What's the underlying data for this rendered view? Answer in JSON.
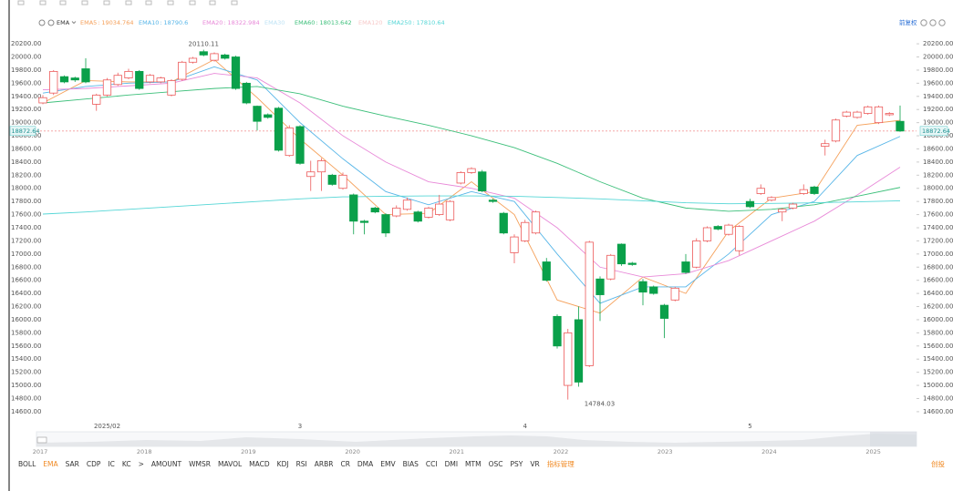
{
  "chart_data": {
    "type": "candlestick",
    "indicator": "EMA",
    "adjust": "前复权",
    "up_color": "#ec5a5a",
    "down_color": "#0aa04a",
    "categories": [
      null,
      null,
      null,
      null,
      null,
      null,
      "2025/02",
      null,
      null,
      null,
      null,
      null,
      null,
      null,
      null,
      null,
      null,
      null,
      null,
      null,
      null,
      null,
      null,
      null,
      "3",
      null,
      null,
      null,
      null,
      null,
      null,
      null,
      null,
      null,
      null,
      null,
      null,
      null,
      null,
      null,
      null,
      null,
      null,
      null,
      null,
      "4",
      null,
      null,
      null,
      null,
      null,
      null,
      null,
      null,
      null,
      null,
      null,
      null,
      null,
      null,
      null,
      null,
      null,
      null,
      null,
      null,
      "5",
      null,
      null,
      null,
      null,
      null,
      null,
      null,
      null,
      null,
      null,
      null,
      null,
      null,
      null
    ],
    "open": [
      19300,
      19450,
      19700,
      19680,
      19820,
      19280,
      19420,
      19580,
      19680,
      19780,
      19620,
      19620,
      19420,
      19660,
      19920,
      20080,
      19950,
      20030,
      20000,
      19600,
      19250,
      19120,
      19220,
      18500,
      18940,
      18180,
      18250,
      18200,
      18000,
      17900,
      17500,
      17700,
      17600,
      17580,
      17680,
      17640,
      17560,
      17600,
      17520,
      18080,
      18240,
      18250,
      17820,
      17620,
      17020,
      17200,
      17320,
      16880,
      16050,
      15000,
      16000,
      15300,
      16620,
      16620,
      17150,
      16860,
      16580,
      16500,
      16220,
      16300,
      16880,
      16800,
      17200,
      17420,
      17300,
      17050,
      17800,
      17920,
      17820,
      17640,
      17700,
      17920,
      18020,
      18640,
      18720,
      19100,
      19080,
      19140,
      19000,
      19120,
      19020
    ],
    "high": [
      19420,
      19800,
      19720,
      19700,
      19980,
      19440,
      19680,
      19760,
      19820,
      19800,
      19740,
      19700,
      19660,
      19940,
      20000,
      20110.11,
      20070,
      20050,
      20020,
      19620,
      19260,
      19140,
      19240,
      18960,
      18960,
      18420,
      18460,
      18220,
      18240,
      17920,
      17520,
      17720,
      17620,
      17740,
      17860,
      17660,
      17720,
      17900,
      17820,
      18260,
      18320,
      18280,
      17840,
      17640,
      17300,
      17520,
      17660,
      16940,
      16080,
      15860,
      16200,
      17200,
      16660,
      17000,
      17160,
      16880,
      16620,
      16520,
      16240,
      16500,
      17000,
      17240,
      17420,
      17440,
      17460,
      17440,
      17840,
      18060,
      17880,
      17700,
      17780,
      18060,
      18040,
      18740,
      19060,
      19180,
      19180,
      19260,
      19260,
      19160,
      19260
    ],
    "low": [
      19280,
      19420,
      19600,
      19620,
      19600,
      19180,
      19400,
      19560,
      19660,
      19500,
      19600,
      19600,
      19400,
      19640,
      19900,
      20010,
      19930,
      19960,
      19500,
      19280,
      18880,
      19060,
      18560,
      18480,
      18360,
      17960,
      17960,
      18040,
      17980,
      17300,
      17300,
      17620,
      17260,
      17560,
      17660,
      17480,
      17540,
      17580,
      17500,
      18060,
      18220,
      17940,
      17780,
      17300,
      16860,
      17180,
      17300,
      16580,
      15560,
      14784.03,
      14980,
      15280,
      15980,
      16600,
      16820,
      16820,
      16220,
      16380,
      15720,
      16280,
      16700,
      16780,
      17180,
      17360,
      17280,
      16980,
      17700,
      17900,
      17800,
      17500,
      17680,
      17900,
      17900,
      18500,
      18700,
      19080,
      19060,
      19120,
      18980,
      19100,
      18860
    ],
    "close": [
      19380,
      19780,
      19620,
      19650,
      19620,
      19420,
      19650,
      19720,
      19780,
      19520,
      19720,
      19680,
      19640,
      19920,
      19980,
      20030,
      20050,
      19980,
      19520,
      19300,
      19020,
      19080,
      18580,
      18920,
      18380,
      18250,
      18420,
      18060,
      18200,
      17500,
      17480,
      17640,
      17320,
      17700,
      17820,
      17500,
      17700,
      17760,
      17800,
      18240,
      18300,
      17960,
      17800,
      17320,
      17260,
      17480,
      17640,
      16600,
      15600,
      15800,
      15050,
      17180,
      16380,
      16980,
      16850,
      16840,
      16420,
      16400,
      16020,
      16480,
      16720,
      17200,
      17400,
      17380,
      17440,
      17420,
      17720,
      18000,
      17860,
      17680,
      17760,
      17980,
      17920,
      18680,
      19040,
      19160,
      19160,
      19240,
      19240,
      19140,
      18872.64
    ],
    "series": [
      {
        "name": "EMA5",
        "color": "#f5a05a",
        "x": [
          0,
          4,
          8,
          12,
          16,
          20,
          24,
          28,
          32,
          36,
          40,
          44,
          48,
          52,
          56,
          60,
          64,
          68,
          72,
          76,
          80
        ],
        "values": [
          19300,
          19640,
          19620,
          19620,
          19960,
          19380,
          18750,
          18200,
          17600,
          17620,
          18100,
          17600,
          16300,
          16100,
          16650,
          16400,
          17350,
          17850,
          17950,
          18960,
          19034.764
        ]
      },
      {
        "name": "EMA10",
        "color": "#58b6e8",
        "x": [
          0,
          4,
          8,
          12,
          16,
          20,
          24,
          28,
          32,
          36,
          40,
          44,
          48,
          52,
          56,
          60,
          64,
          68,
          72,
          76,
          80
        ],
        "values": [
          19450,
          19550,
          19600,
          19620,
          19850,
          19650,
          19000,
          18450,
          17950,
          17750,
          17950,
          17800,
          17000,
          16250,
          16500,
          16500,
          17000,
          17600,
          17800,
          18500,
          18790.6
        ]
      },
      {
        "name": "EMA20",
        "color": "#e889d8",
        "x": [
          0,
          4,
          8,
          12,
          16,
          20,
          24,
          28,
          32,
          36,
          40,
          44,
          48,
          52,
          56,
          60,
          64,
          68,
          72,
          76,
          80
        ],
        "values": [
          19500,
          19520,
          19560,
          19600,
          19750,
          19680,
          19300,
          18800,
          18400,
          18100,
          18000,
          17850,
          17400,
          16800,
          16650,
          16700,
          16900,
          17200,
          17500,
          17900,
          18322.984
        ]
      },
      {
        "name": "EMA60",
        "color": "#3cbf7a",
        "x": [
          0,
          4,
          8,
          12,
          16,
          20,
          24,
          28,
          32,
          36,
          40,
          44,
          48,
          52,
          56,
          60,
          64,
          68,
          72,
          76,
          80
        ],
        "values": [
          19300,
          19360,
          19420,
          19470,
          19520,
          19550,
          19440,
          19250,
          19100,
          18960,
          18800,
          18620,
          18380,
          18100,
          17850,
          17700,
          17650,
          17680,
          17750,
          17880,
          18013.642
        ]
      },
      {
        "name": "EMA250",
        "color": "#55d6d6",
        "x": [
          0,
          4,
          8,
          12,
          16,
          20,
          24,
          28,
          32,
          36,
          40,
          44,
          48,
          52,
          56,
          60,
          64,
          68,
          72,
          76,
          80
        ],
        "values": [
          17608,
          17640,
          17680,
          17720,
          17760,
          17800,
          17840,
          17870,
          17880,
          17885,
          17885,
          17880,
          17860,
          17840,
          17810,
          17780,
          17765,
          17770,
          17780,
          17795,
          17810.64
        ]
      }
    ],
    "inactive_series": [
      {
        "name": "EMA30",
        "color": "#bfe3f5"
      },
      {
        "name": "EMA120",
        "color": "#f7c9c9"
      }
    ],
    "last_price": 18872.64,
    "max_label": 20110.11,
    "min_label": 14784.03,
    "ylim": [
      14460,
      20340
    ],
    "yticks": [
      {
        "value": 14600,
        "label": "14600.00"
      },
      {
        "value": 14800,
        "label": "14800.00"
      },
      {
        "value": 15000,
        "label": "15000.00"
      },
      {
        "value": 15200,
        "label": "15200.00"
      },
      {
        "value": 15400,
        "label": "15400.00"
      },
      {
        "value": 15600,
        "label": "15600.00"
      },
      {
        "value": 15800,
        "label": "15800.00"
      },
      {
        "value": 16000,
        "label": "16000.00"
      },
      {
        "value": 16200,
        "label": "16200.00"
      },
      {
        "value": 16400,
        "label": "16400.00"
      },
      {
        "value": 16600,
        "label": "16600.00"
      },
      {
        "value": 16800,
        "label": "16800.00"
      },
      {
        "value": 17000,
        "label": "17000.00"
      },
      {
        "value": 17200,
        "label": "17200.00"
      },
      {
        "value": 17400,
        "label": "17400.00"
      },
      {
        "value": 17600,
        "label": "17600.00"
      },
      {
        "value": 17800,
        "label": "17800.00"
      },
      {
        "value": 18000,
        "label": "18000.00"
      },
      {
        "value": 18200,
        "label": "18200.00"
      },
      {
        "value": 18400,
        "label": "18400.00"
      },
      {
        "value": 18600,
        "label": "18600.00"
      },
      {
        "value": 18800,
        "label": "18800.00"
      },
      {
        "value": 19000,
        "label": "19000.00"
      },
      {
        "value": 19200,
        "label": "19200.00"
      },
      {
        "value": 19400,
        "label": "19400.00"
      },
      {
        "value": 19600,
        "label": "19600.00"
      },
      {
        "value": 19800,
        "label": "19800.00"
      },
      {
        "value": 20000,
        "label": "20000.00"
      },
      {
        "value": 20200,
        "label": "20200.00"
      }
    ],
    "navigator_years": [
      "2017",
      "2018",
      "2019",
      "2020",
      "2021",
      "2022",
      "2023",
      "2024",
      "2025"
    ]
  },
  "toolbar": {
    "tabs": [
      "BOLL",
      "EMA",
      "SAR",
      "CDP",
      "IC",
      "KC",
      ">",
      "AMOUNT",
      "WMSR",
      "MAVOL",
      "MACD",
      "KDJ",
      "RSI",
      "ARBR",
      "CR",
      "DMA",
      "EMV",
      "BIAS",
      "CCI",
      "DMI",
      "MTM",
      "OSC",
      "PSY",
      "VR"
    ],
    "manage": "指标管理",
    "right": "创投"
  }
}
